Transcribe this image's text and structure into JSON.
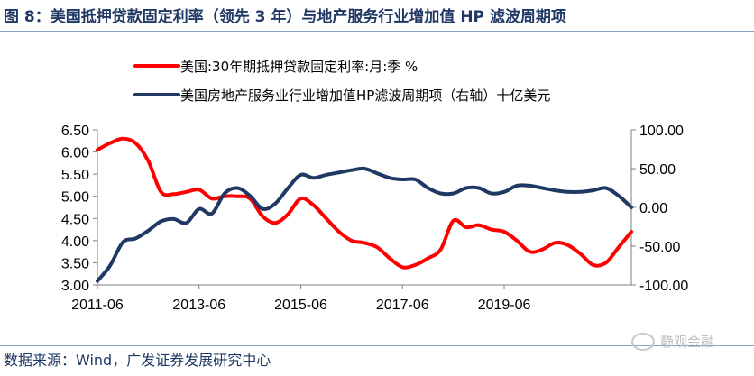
{
  "figure": {
    "title": "图 8：美国抵押贷款固定利率（领先 3 年）与地产服务行业增加值 HP 滤波周期项",
    "source": "数据来源：Wind，广发证券发展研究中心",
    "watermark": "静观金融",
    "watermark_icon": "wechat-icon"
  },
  "chart_data": {
    "type": "line",
    "x_ticks": [
      "2011-06",
      "2013-06",
      "2015-06",
      "2017-06",
      "2019-06"
    ],
    "y_left": {
      "ticks": [
        "6.50",
        "6.00",
        "5.50",
        "5.00",
        "4.50",
        "4.00",
        "3.50",
        "3.00"
      ],
      "range": [
        3.0,
        6.5
      ]
    },
    "y_right": {
      "ticks": [
        "100.00",
        "50.00",
        "0.00",
        "-50.00",
        "-100.00"
      ],
      "range": [
        -100,
        100
      ]
    },
    "grid": false,
    "legend_position": "top",
    "series": [
      {
        "name": "美国:30年期抵押贷款固定利率:月:季 %",
        "axis": "left",
        "color": "#ff0000",
        "points": [
          [
            "2011-06",
            6.05
          ],
          [
            "2011-09",
            6.2
          ],
          [
            "2011-12",
            6.3
          ],
          [
            "2012-03",
            6.2
          ],
          [
            "2012-06",
            5.8
          ],
          [
            "2012-09",
            5.1
          ],
          [
            "2012-12",
            5.05
          ],
          [
            "2013-03",
            5.1
          ],
          [
            "2013-06",
            5.15
          ],
          [
            "2013-09",
            4.95
          ],
          [
            "2013-12",
            5.0
          ],
          [
            "2014-03",
            5.0
          ],
          [
            "2014-06",
            4.95
          ],
          [
            "2014-09",
            4.55
          ],
          [
            "2014-12",
            4.4
          ],
          [
            "2015-03",
            4.6
          ],
          [
            "2015-06",
            4.95
          ],
          [
            "2015-09",
            4.8
          ],
          [
            "2015-12",
            4.5
          ],
          [
            "2016-03",
            4.2
          ],
          [
            "2016-06",
            4.0
          ],
          [
            "2016-09",
            3.95
          ],
          [
            "2016-12",
            3.85
          ],
          [
            "2017-03",
            3.6
          ],
          [
            "2017-06",
            3.4
          ],
          [
            "2017-09",
            3.45
          ],
          [
            "2017-12",
            3.6
          ],
          [
            "2018-03",
            3.8
          ],
          [
            "2018-06",
            4.45
          ],
          [
            "2018-09",
            4.3
          ],
          [
            "2018-12",
            4.35
          ],
          [
            "2019-03",
            4.25
          ],
          [
            "2019-06",
            4.2
          ],
          [
            "2019-09",
            4.0
          ],
          [
            "2019-12",
            3.75
          ],
          [
            "2020-03",
            3.8
          ],
          [
            "2020-06",
            3.95
          ],
          [
            "2020-09",
            3.9
          ],
          [
            "2020-12",
            3.7
          ],
          [
            "2021-03",
            3.45
          ],
          [
            "2021-06",
            3.5
          ],
          [
            "2021-09",
            3.85
          ],
          [
            "2021-12",
            4.2
          ]
        ]
      },
      {
        "name": "美国房地产服务业行业增加值HP滤波周期项（右轴）十亿美元",
        "axis": "right",
        "color": "#1f3864",
        "points": [
          [
            "2011-06",
            -95
          ],
          [
            "2011-09",
            -75
          ],
          [
            "2011-12",
            -45
          ],
          [
            "2012-03",
            -40
          ],
          [
            "2012-06",
            -30
          ],
          [
            "2012-09",
            -18
          ],
          [
            "2012-12",
            -15
          ],
          [
            "2013-03",
            -20
          ],
          [
            "2013-06",
            -2
          ],
          [
            "2013-09",
            -8
          ],
          [
            "2013-12",
            18
          ],
          [
            "2014-03",
            25
          ],
          [
            "2014-06",
            15
          ],
          [
            "2014-09",
            -2
          ],
          [
            "2014-12",
            5
          ],
          [
            "2015-03",
            25
          ],
          [
            "2015-06",
            42
          ],
          [
            "2015-09",
            38
          ],
          [
            "2015-12",
            42
          ],
          [
            "2016-03",
            45
          ],
          [
            "2016-06",
            48
          ],
          [
            "2016-09",
            50
          ],
          [
            "2016-12",
            44
          ],
          [
            "2017-03",
            38
          ],
          [
            "2017-06",
            36
          ],
          [
            "2017-09",
            36
          ],
          [
            "2017-12",
            25
          ],
          [
            "2018-03",
            18
          ],
          [
            "2018-06",
            18
          ],
          [
            "2018-09",
            25
          ],
          [
            "2018-12",
            25
          ],
          [
            "2019-03",
            18
          ],
          [
            "2019-06",
            20
          ],
          [
            "2019-09",
            28
          ],
          [
            "2019-12",
            28
          ],
          [
            "2020-03",
            25
          ],
          [
            "2020-06",
            22
          ],
          [
            "2020-09",
            20
          ],
          [
            "2020-12",
            20
          ],
          [
            "2021-03",
            22
          ],
          [
            "2021-06",
            25
          ],
          [
            "2021-09",
            15
          ],
          [
            "2021-12",
            0
          ]
        ]
      }
    ]
  }
}
